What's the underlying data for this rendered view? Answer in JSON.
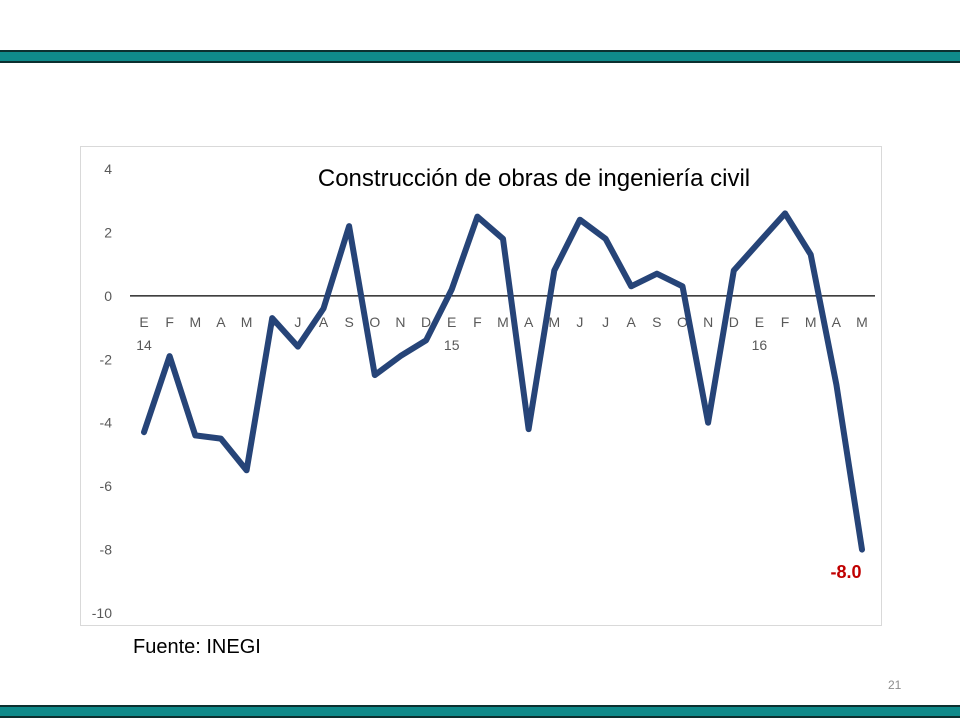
{
  "slide": {
    "source": "Fuente: INEGI",
    "page_number": "21",
    "band_color": "#0f8a8a"
  },
  "chart_data": {
    "type": "line",
    "title": "Construcción de obras de ingeniería civil",
    "xlabel": "",
    "ylabel": "",
    "ylim": [
      -10,
      4
    ],
    "yticks": [
      4,
      2,
      0,
      -2,
      -4,
      -6,
      -8,
      -10
    ],
    "grid": false,
    "categories": [
      "E",
      "F",
      "M",
      "A",
      "M",
      "J",
      "J",
      "A",
      "S",
      "O",
      "N",
      "D",
      "E",
      "F",
      "M",
      "A",
      "M",
      "J",
      "J",
      "A",
      "S",
      "O",
      "N",
      "D",
      "E",
      "F",
      "M",
      "A",
      "M"
    ],
    "year_labels": [
      {
        "index": 0,
        "label": "14"
      },
      {
        "index": 12,
        "label": "15"
      },
      {
        "index": 24,
        "label": "16"
      }
    ],
    "series": [
      {
        "color": "#264478",
        "values": [
          -4.3,
          -1.9,
          -4.4,
          -4.5,
          -5.5,
          -0.7,
          -1.6,
          -0.4,
          2.2,
          -2.5,
          -1.9,
          -1.4,
          0.2,
          2.5,
          1.8,
          -4.2,
          0.8,
          2.4,
          1.8,
          0.3,
          0.7,
          0.3,
          -4.0,
          0.8,
          1.7,
          2.6,
          1.3,
          -2.8,
          -8.0
        ]
      }
    ],
    "annotation": {
      "text": "-8.0",
      "index": 28,
      "color": "#c00000"
    }
  }
}
